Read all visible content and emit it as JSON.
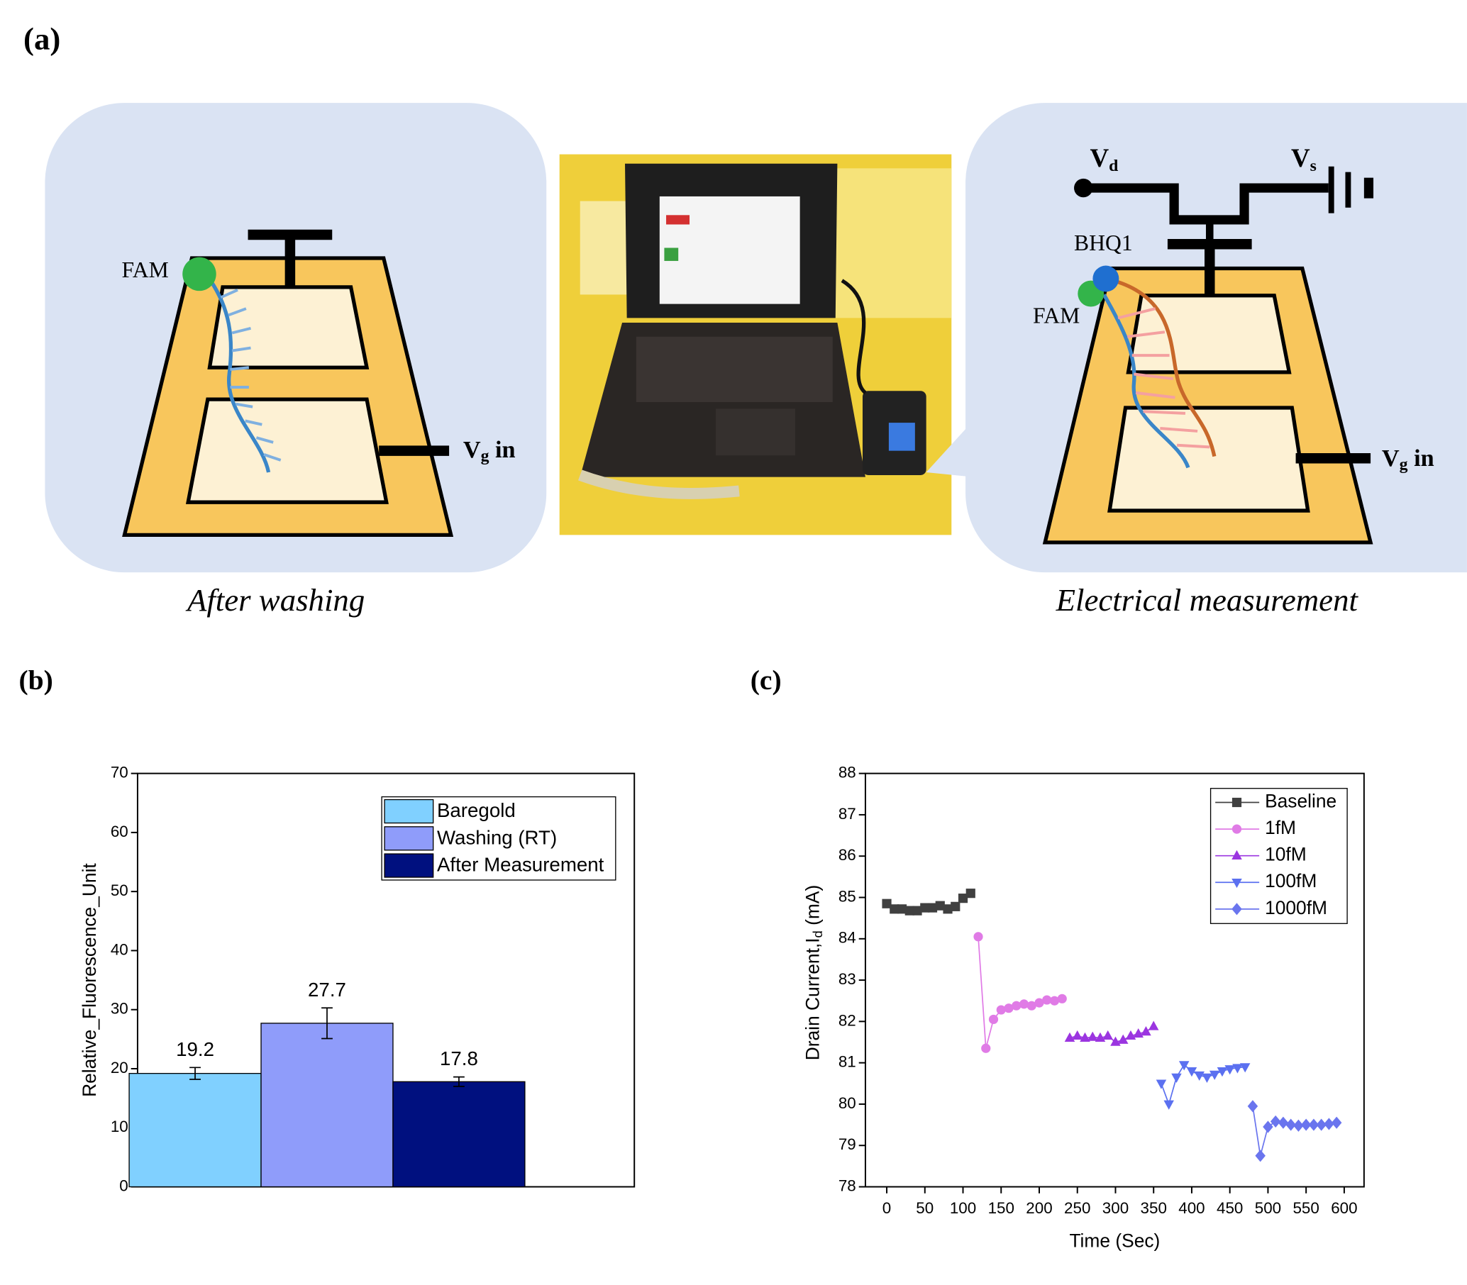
{
  "panel_labels": [
    "(a)",
    "(b)",
    "(c)"
  ],
  "figure_a": {
    "left_caption": "After washing",
    "right_caption": "Electrical measurement",
    "fam_left": "FAM",
    "fam_right": "FAM",
    "bhq": "BHQ1",
    "vd": [
      "V",
      "d"
    ],
    "vs": [
      "V",
      "s"
    ],
    "vg_left": [
      "V",
      "g",
      " in"
    ],
    "vg_right": [
      "V",
      "g",
      " in"
    ]
  },
  "chart_data": [
    {
      "type": "bar",
      "ylabel": "Relative_Fluorescence_Unit",
      "ylim": [
        0,
        70
      ],
      "yticks": [
        0,
        10,
        20,
        30,
        40,
        50,
        60,
        70
      ],
      "legend": "upper right",
      "series": [
        {
          "name": "Baregold",
          "color": "#80d0ff",
          "values": [
            19.2
          ],
          "errors": [
            1.0
          ]
        },
        {
          "name": "Washing (RT)",
          "color": "#8f9cfa",
          "values": [
            27.7
          ],
          "errors": [
            2.6
          ]
        },
        {
          "name": "After Measurement",
          "color": "#00107f",
          "values": [
            17.8
          ],
          "errors": [
            0.8
          ]
        }
      ]
    },
    {
      "type": "line",
      "xlabel": "Time (Sec)",
      "ylabel": [
        "Drain Current,I",
        "d",
        " (mA)"
      ],
      "xlim": [
        -28,
        626
      ],
      "xticks": [
        0,
        50,
        100,
        150,
        200,
        250,
        300,
        350,
        400,
        450,
        500,
        550,
        600
      ],
      "ylim": [
        78,
        88
      ],
      "yticks": [
        78,
        79,
        80,
        81,
        82,
        83,
        84,
        85,
        86,
        87,
        88
      ],
      "legend": "upper right",
      "series": [
        {
          "name": "Baseline",
          "color": "#404040",
          "marker": "square",
          "x": [
            0,
            10,
            20,
            30,
            40,
            50,
            60,
            70,
            80,
            90,
            100,
            110
          ],
          "values": [
            84.85,
            84.72,
            84.72,
            84.68,
            84.68,
            84.75,
            84.75,
            84.8,
            84.72,
            84.78,
            84.98,
            85.1
          ]
        },
        {
          "name": "1fM",
          "color": "#e07be6",
          "marker": "circle",
          "x": [
            120,
            130,
            140,
            150,
            160,
            170,
            180,
            190,
            200,
            210,
            220,
            230
          ],
          "values": [
            84.05,
            81.35,
            82.05,
            82.28,
            82.32,
            82.38,
            82.42,
            82.38,
            82.45,
            82.52,
            82.5,
            82.55
          ]
        },
        {
          "name": "10fM",
          "color": "#9b35e0",
          "marker": "triangle-up",
          "x": [
            240,
            250,
            260,
            270,
            280,
            290,
            300,
            310,
            320,
            330,
            340,
            350
          ],
          "values": [
            81.6,
            81.65,
            81.6,
            81.62,
            81.6,
            81.65,
            81.5,
            81.55,
            81.65,
            81.7,
            81.75,
            81.88
          ]
        },
        {
          "name": "100fM",
          "color": "#5b70f0",
          "marker": "triangle-down",
          "x": [
            360,
            370,
            380,
            390,
            400,
            410,
            420,
            430,
            440,
            450,
            460,
            470
          ],
          "values": [
            80.5,
            80.0,
            80.65,
            80.95,
            80.8,
            80.7,
            80.65,
            80.72,
            80.8,
            80.85,
            80.88,
            80.9
          ]
        },
        {
          "name": "1000fM",
          "color": "#6a75ee",
          "marker": "diamond",
          "x": [
            480,
            490,
            500,
            510,
            520,
            530,
            540,
            550,
            560,
            570,
            580,
            590
          ],
          "values": [
            79.95,
            78.75,
            79.45,
            79.58,
            79.55,
            79.5,
            79.48,
            79.5,
            79.5,
            79.5,
            79.52,
            79.55
          ]
        }
      ]
    }
  ]
}
